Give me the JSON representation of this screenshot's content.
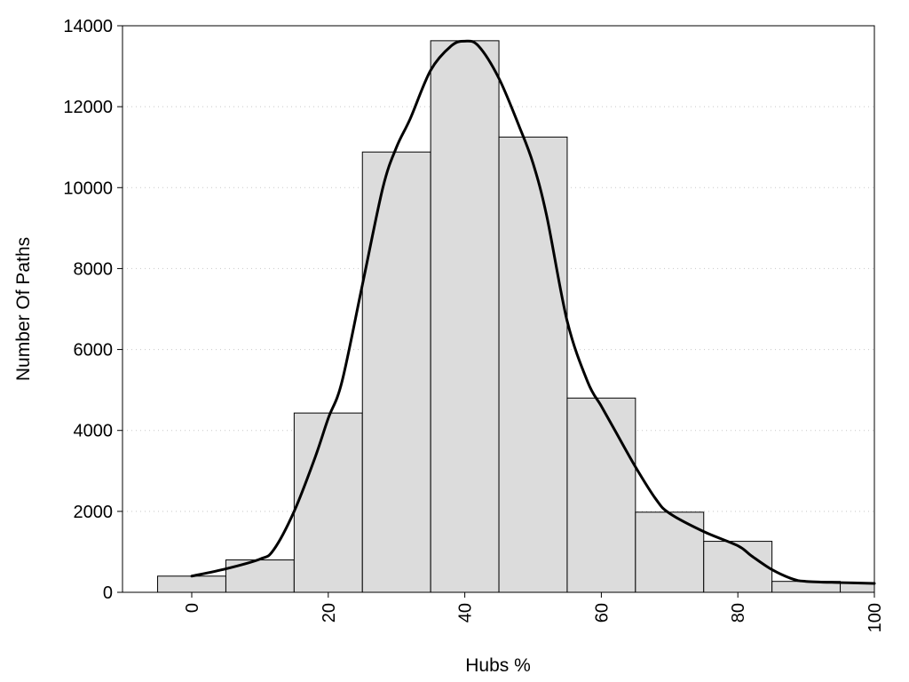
{
  "chart_data": {
    "type": "bar",
    "title": "",
    "xlabel": "Hubs %",
    "ylabel": "Number Of Paths",
    "xlim": [
      -10,
      100
    ],
    "ylim": [
      0,
      14000
    ],
    "x_ticks": [
      0,
      20,
      40,
      60,
      80,
      100
    ],
    "y_ticks": [
      0,
      2000,
      4000,
      6000,
      8000,
      10000,
      12000,
      14000
    ],
    "grid": "horizontal dotted",
    "bar_color": "#dcdcdc",
    "bar_width": 10,
    "bins": [
      {
        "center": 0,
        "value": 400
      },
      {
        "center": 10,
        "value": 800
      },
      {
        "center": 20,
        "value": 4430
      },
      {
        "center": 30,
        "value": 10880
      },
      {
        "center": 40,
        "value": 13630
      },
      {
        "center": 50,
        "value": 11250
      },
      {
        "center": 60,
        "value": 4800
      },
      {
        "center": 70,
        "value": 1980
      },
      {
        "center": 80,
        "value": 1260
      },
      {
        "center": 90,
        "value": 270
      },
      {
        "center": 100,
        "value": 230
      }
    ],
    "density_curve": {
      "x": [
        0,
        5,
        10,
        12,
        15,
        18,
        20,
        22,
        25,
        28,
        30,
        32,
        35,
        38,
        40,
        42,
        45,
        48,
        50,
        52,
        55,
        58,
        60,
        62,
        65,
        68,
        70,
        75,
        80,
        82,
        85,
        88,
        90,
        95,
        100
      ],
      "y": [
        400,
        580,
        820,
        1050,
        2000,
        3300,
        4300,
        5200,
        7600,
        10000,
        11000,
        11700,
        12900,
        13500,
        13620,
        13500,
        12700,
        11500,
        10600,
        9300,
        6700,
        5200,
        4600,
        4000,
        3100,
        2300,
        1950,
        1500,
        1150,
        900,
        560,
        330,
        270,
        240,
        220
      ]
    }
  }
}
